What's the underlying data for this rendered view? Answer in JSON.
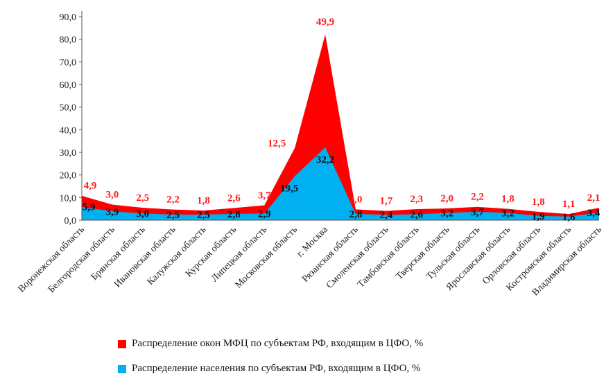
{
  "chart_data": {
    "type": "area",
    "stacked": true,
    "categories": [
      "Воронежская область",
      "Белгородская область",
      "Брянская область",
      "Ивановская область",
      "Калужская область",
      "Курская область",
      "Липецкая область",
      "Московская область",
      "г. Москва",
      "Рязанская область",
      "Смоленская область",
      "Тамбовская область",
      "Тверская область",
      "Тульская область",
      "Ярославская область",
      "Орловская область",
      "Костромская область",
      "Владимирская область"
    ],
    "series": [
      {
        "name": "Распределение населения по субъектам РФ, входящим в ЦФО, %",
        "color": "#00b0f0",
        "values": [
          5.9,
          3.9,
          3.0,
          2.5,
          2.5,
          2.8,
          2.9,
          19.5,
          32.2,
          2.8,
          2.4,
          2.6,
          3.2,
          3.7,
          3.2,
          1.9,
          1.6,
          3.4
        ],
        "labels": [
          "5,9",
          "3,9",
          "3,0",
          "2,5",
          "2,5",
          "2,8",
          "2,9",
          "19,5",
          "32,2",
          "2,8",
          "2,4",
          "2,6",
          "3,2",
          "3,7",
          "3,2",
          "1,9",
          "1,6",
          "3,4"
        ]
      },
      {
        "name": "Распределение окон МФЦ  по субъектам РФ, входящим в ЦФО, %",
        "color": "#ff0000",
        "values": [
          4.9,
          3.0,
          2.5,
          2.2,
          1.8,
          2.6,
          3.7,
          12.5,
          49.9,
          2.0,
          1.7,
          2.3,
          2.0,
          2.2,
          1.8,
          1.8,
          1.1,
          2.1
        ],
        "labels": [
          "4,9",
          "3,0",
          "2,5",
          "2,2",
          "1,8",
          "2,6",
          "3,7",
          "12,5",
          "49,9",
          "2,0",
          "1,7",
          "2,3",
          "2,0",
          "2,2",
          "1,8",
          "1,8",
          "1,1",
          "2,1"
        ]
      }
    ],
    "ylim": [
      0,
      90
    ],
    "yticks": [
      "0,0",
      "10,0",
      "20,0",
      "30,0",
      "40,0",
      "50,0",
      "60,0",
      "70,0",
      "80,0",
      "90,0"
    ],
    "grid": false,
    "legend_position": "bottom",
    "legend_order": [
      1,
      0
    ]
  }
}
